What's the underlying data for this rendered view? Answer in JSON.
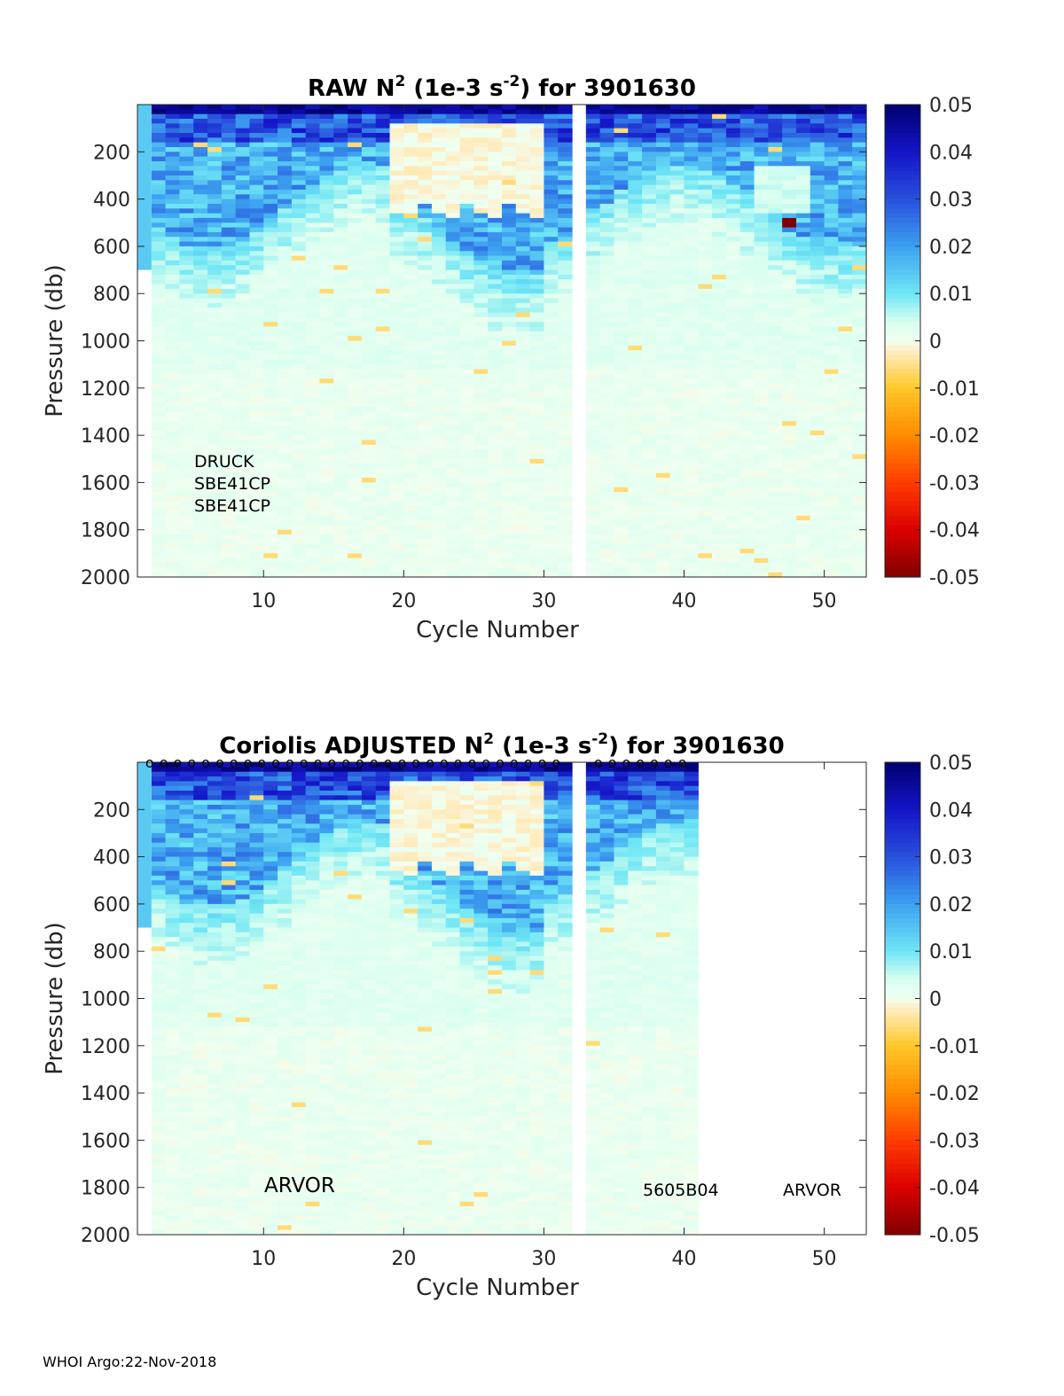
{
  "footer": "WHOI Argo:22-Nov-2018",
  "chart_data": [
    {
      "type": "heatmap",
      "title_parts": [
        "RAW N",
        "2",
        " (1e-3 s",
        "-2",
        ") for 3901630"
      ],
      "xlabel": "Cycle Number",
      "ylabel": "Pressure (db)",
      "xlim": [
        1,
        53
      ],
      "ylim": [
        2000,
        0
      ],
      "xticks": [
        10,
        20,
        30,
        40,
        50
      ],
      "yticks": [
        200,
        400,
        600,
        800,
        1000,
        1200,
        1400,
        1600,
        1800,
        2000
      ],
      "clim": [
        -0.05,
        0.05
      ],
      "colorbar_ticks": [
        "0.05",
        "0.04",
        "0.03",
        "0.02",
        "0.01",
        "0",
        "-0.01",
        "-0.02",
        "-0.03",
        "-0.04",
        "-0.05"
      ],
      "data_cycles": [
        2,
        32
      ],
      "data_cycles_2": [
        33,
        53
      ],
      "missing_cycles": [
        32
      ],
      "annotations": [
        "DRUCK",
        "SBE41CP",
        "SBE41CP"
      ],
      "qc_markers": false
    },
    {
      "type": "heatmap",
      "title_parts": [
        "Coriolis  ADJUSTED N",
        "2",
        " (1e-3 s",
        "-2",
        ") for 3901630"
      ],
      "xlabel": "Cycle Number",
      "ylabel": "Pressure (db)",
      "xlim": [
        1,
        53
      ],
      "ylim": [
        2000,
        0
      ],
      "xticks": [
        10,
        20,
        30,
        40,
        50
      ],
      "yticks": [
        200,
        400,
        600,
        800,
        1000,
        1200,
        1400,
        1600,
        1800,
        2000
      ],
      "clim": [
        -0.05,
        0.05
      ],
      "colorbar_ticks": [
        "0.05",
        "0.04",
        "0.03",
        "0.02",
        "0.01",
        "0",
        "-0.01",
        "-0.02",
        "-0.03",
        "-0.04",
        "-0.05"
      ],
      "data_cycles": [
        2,
        32
      ],
      "data_cycles_2": [
        33,
        41
      ],
      "missing_cycles": [
        32
      ],
      "annotations": [
        "ARVOR",
        "5605B04",
        "ARVOR"
      ],
      "qc_markers": true,
      "qc_marker_symbol": "o"
    }
  ]
}
